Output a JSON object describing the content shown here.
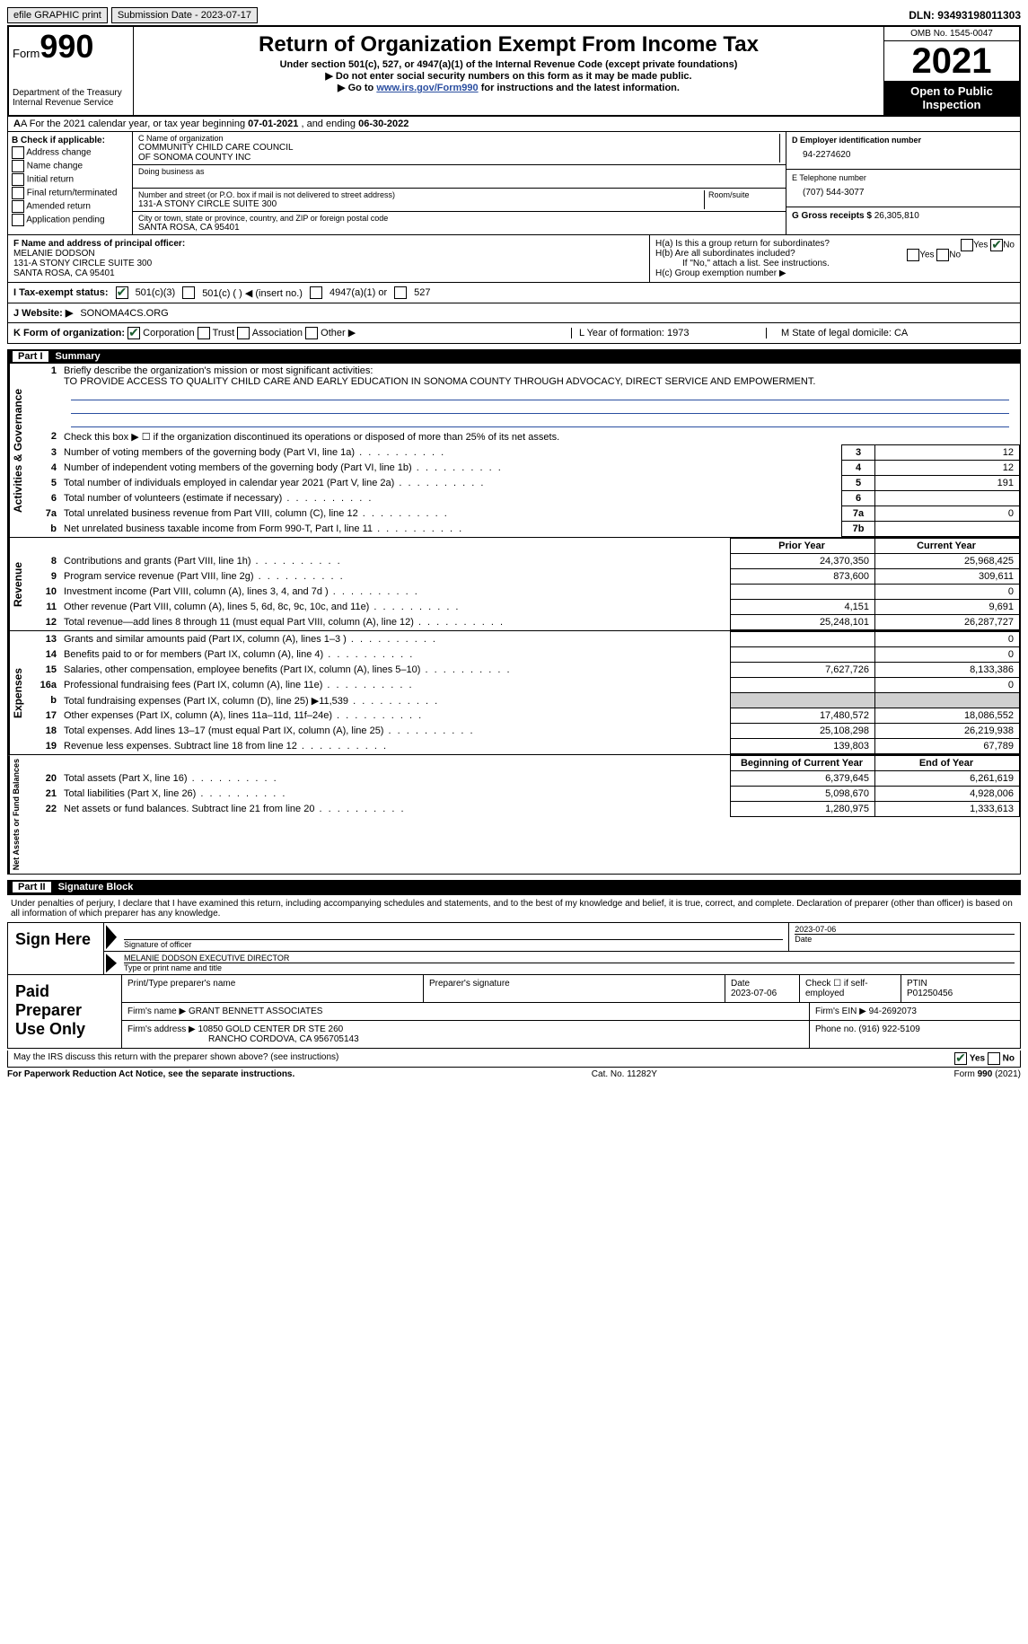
{
  "topbar": {
    "efile": "efile GRAPHIC print",
    "submission_label": "Submission Date - 2023-07-17",
    "dln": "DLN: 93493198011303"
  },
  "header": {
    "form_word": "Form",
    "form_num": "990",
    "dept": "Department of the Treasury",
    "irs": "Internal Revenue Service",
    "title": "Return of Organization Exempt From Income Tax",
    "sub1": "Under section 501(c), 527, or 4947(a)(1) of the Internal Revenue Code (except private foundations)",
    "sub2": "Do not enter social security numbers on this form as it may be made public.",
    "sub3_pre": "Go to ",
    "sub3_link": "www.irs.gov/Form990",
    "sub3_post": " for instructions and the latest information.",
    "omb": "OMB No. 1545-0047",
    "year": "2021",
    "otp": "Open to Public Inspection"
  },
  "lineA": {
    "text_pre": "A For the 2021 calendar year, or tax year beginning ",
    "begin": "07-01-2021",
    "mid": " , and ending ",
    "end": "06-30-2022"
  },
  "colB": {
    "title": "B Check if applicable:",
    "opts": [
      "Address change",
      "Name change",
      "Initial return",
      "Final return/terminated",
      "Amended return",
      "Application pending"
    ]
  },
  "colC": {
    "name_lab": "C Name of organization",
    "name1": "COMMUNITY CHILD CARE COUNCIL",
    "name2": "OF SONOMA COUNTY INC",
    "dba_lab": "Doing business as",
    "addr_lab": "Number and street (or P.O. box if mail is not delivered to street address)",
    "room_lab": "Room/suite",
    "addr": "131-A STONY CIRCLE SUITE 300",
    "city_lab": "City or town, state or province, country, and ZIP or foreign postal code",
    "city": "SANTA ROSA, CA  95401"
  },
  "colD": {
    "ein_lab": "D Employer identification number",
    "ein": "94-2274620",
    "tel_lab": "E Telephone number",
    "tel": "(707) 544-3077",
    "gross_lab": "G Gross receipts $",
    "gross": "26,305,810"
  },
  "lineF": {
    "lab": "F Name and address of principal officer:",
    "name": "MELANIE DODSON",
    "addr1": "131-A STONY CIRCLE SUITE 300",
    "addr2": "SANTA ROSA, CA  95401"
  },
  "lineH": {
    "a": "H(a)  Is this a group return for subordinates?",
    "b": "H(b)  Are all subordinates included?",
    "b_note": "If \"No,\" attach a list. See instructions.",
    "c": "H(c)  Group exemption number ▶",
    "yes": "Yes",
    "no": "No"
  },
  "lineI": {
    "lab": "I  Tax-exempt status:",
    "o1": "501(c)(3)",
    "o2": "501(c) (   ) ◀ (insert no.)",
    "o3": "4947(a)(1) or",
    "o4": "527"
  },
  "lineJ": {
    "lab": "J  Website: ▶",
    "val": "SONOMA4CS.ORG"
  },
  "lineK": {
    "lab": "K Form of organization:",
    "opts": [
      "Corporation",
      "Trust",
      "Association",
      "Other ▶"
    ],
    "L": "L Year of formation: 1973",
    "M": "M State of legal domicile: CA"
  },
  "part1": {
    "num": "Part I",
    "title": "Summary",
    "side1": "Activities & Governance",
    "side2": "Revenue",
    "side3": "Expenses",
    "side4": "Net Assets or Fund Balances",
    "l1_lab": "Briefly describe the organization's mission or most significant activities:",
    "l1_val": "TO PROVIDE ACCESS TO QUALITY CHILD CARE AND EARLY EDUCATION IN SONOMA COUNTY THROUGH ADVOCACY, DIRECT SERVICE AND EMPOWERMENT.",
    "l2": "Check this box ▶ ☐ if the organization discontinued its operations or disposed of more than 25% of its net assets.",
    "rows_ag": [
      {
        "n": "3",
        "d": "Number of voting members of the governing body (Part VI, line 1a)",
        "b": "3",
        "v": "12"
      },
      {
        "n": "4",
        "d": "Number of independent voting members of the governing body (Part VI, line 1b)",
        "b": "4",
        "v": "12"
      },
      {
        "n": "5",
        "d": "Total number of individuals employed in calendar year 2021 (Part V, line 2a)",
        "b": "5",
        "v": "191"
      },
      {
        "n": "6",
        "d": "Total number of volunteers (estimate if necessary)",
        "b": "6",
        "v": ""
      },
      {
        "n": "7a",
        "d": "Total unrelated business revenue from Part VIII, column (C), line 12",
        "b": "7a",
        "v": "0"
      },
      {
        "n": "b",
        "d": "Net unrelated business taxable income from Form 990-T, Part I, line 11",
        "b": "7b",
        "v": ""
      }
    ],
    "hdr_prior": "Prior Year",
    "hdr_curr": "Current Year",
    "rows_rev": [
      {
        "n": "8",
        "d": "Contributions and grants (Part VIII, line 1h)",
        "p": "24,370,350",
        "c": "25,968,425"
      },
      {
        "n": "9",
        "d": "Program service revenue (Part VIII, line 2g)",
        "p": "873,600",
        "c": "309,611"
      },
      {
        "n": "10",
        "d": "Investment income (Part VIII, column (A), lines 3, 4, and 7d )",
        "p": "",
        "c": "0"
      },
      {
        "n": "11",
        "d": "Other revenue (Part VIII, column (A), lines 5, 6d, 8c, 9c, 10c, and 11e)",
        "p": "4,151",
        "c": "9,691"
      },
      {
        "n": "12",
        "d": "Total revenue—add lines 8 through 11 (must equal Part VIII, column (A), line 12)",
        "p": "25,248,101",
        "c": "26,287,727"
      }
    ],
    "rows_exp": [
      {
        "n": "13",
        "d": "Grants and similar amounts paid (Part IX, column (A), lines 1–3 )",
        "p": "",
        "c": "0"
      },
      {
        "n": "14",
        "d": "Benefits paid to or for members (Part IX, column (A), line 4)",
        "p": "",
        "c": "0"
      },
      {
        "n": "15",
        "d": "Salaries, other compensation, employee benefits (Part IX, column (A), lines 5–10)",
        "p": "7,627,726",
        "c": "8,133,386"
      },
      {
        "n": "16a",
        "d": "Professional fundraising fees (Part IX, column (A), line 11e)",
        "p": "",
        "c": "0"
      },
      {
        "n": "b",
        "d": "Total fundraising expenses (Part IX, column (D), line 25) ▶11,539",
        "p": "shade",
        "c": "shade"
      },
      {
        "n": "17",
        "d": "Other expenses (Part IX, column (A), lines 11a–11d, 11f–24e)",
        "p": "17,480,572",
        "c": "18,086,552"
      },
      {
        "n": "18",
        "d": "Total expenses. Add lines 13–17 (must equal Part IX, column (A), line 25)",
        "p": "25,108,298",
        "c": "26,219,938"
      },
      {
        "n": "19",
        "d": "Revenue less expenses. Subtract line 18 from line 12",
        "p": "139,803",
        "c": "67,789"
      }
    ],
    "hdr_boy": "Beginning of Current Year",
    "hdr_eoy": "End of Year",
    "rows_na": [
      {
        "n": "20",
        "d": "Total assets (Part X, line 16)",
        "p": "6,379,645",
        "c": "6,261,619"
      },
      {
        "n": "21",
        "d": "Total liabilities (Part X, line 26)",
        "p": "5,098,670",
        "c": "4,928,006"
      },
      {
        "n": "22",
        "d": "Net assets or fund balances. Subtract line 21 from line 20",
        "p": "1,280,975",
        "c": "1,333,613"
      }
    ]
  },
  "part2": {
    "num": "Part II",
    "title": "Signature Block",
    "decl": "Under penalties of perjury, I declare that I have examined this return, including accompanying schedules and statements, and to the best of my knowledge and belief, it is true, correct, and complete. Declaration of preparer (other than officer) is based on all information of which preparer has any knowledge.",
    "sign_here": "Sign Here",
    "sig_of": "Signature of officer",
    "sig_date": "2023-07-06",
    "date_lab": "Date",
    "officer": "MELANIE DODSON  EXECUTIVE DIRECTOR",
    "typeprint": "Type or print name and title",
    "paid": "Paid Preparer Use Only",
    "pp_name_lab": "Print/Type preparer's name",
    "pp_sig_lab": "Preparer's signature",
    "pp_date_lab": "Date",
    "pp_date": "2023-07-06",
    "pp_check": "Check ☐ if self-employed",
    "ptin_lab": "PTIN",
    "ptin": "P01250456",
    "firm_name_lab": "Firm's name    ▶",
    "firm_name": "GRANT BENNETT ASSOCIATES",
    "firm_ein_lab": "Firm's EIN ▶",
    "firm_ein": "94-2692073",
    "firm_addr_lab": "Firm's address ▶",
    "firm_addr1": "10850 GOLD CENTER DR STE 260",
    "firm_addr2": "RANCHO CORDOVA, CA  956705143",
    "phone_lab": "Phone no.",
    "phone": "(916) 922-5109",
    "discuss": "May the IRS discuss this return with the preparer shown above? (see instructions)"
  },
  "footer": {
    "pra": "For Paperwork Reduction Act Notice, see the separate instructions.",
    "cat": "Cat. No. 11282Y",
    "form": "Form 990 (2021)"
  }
}
